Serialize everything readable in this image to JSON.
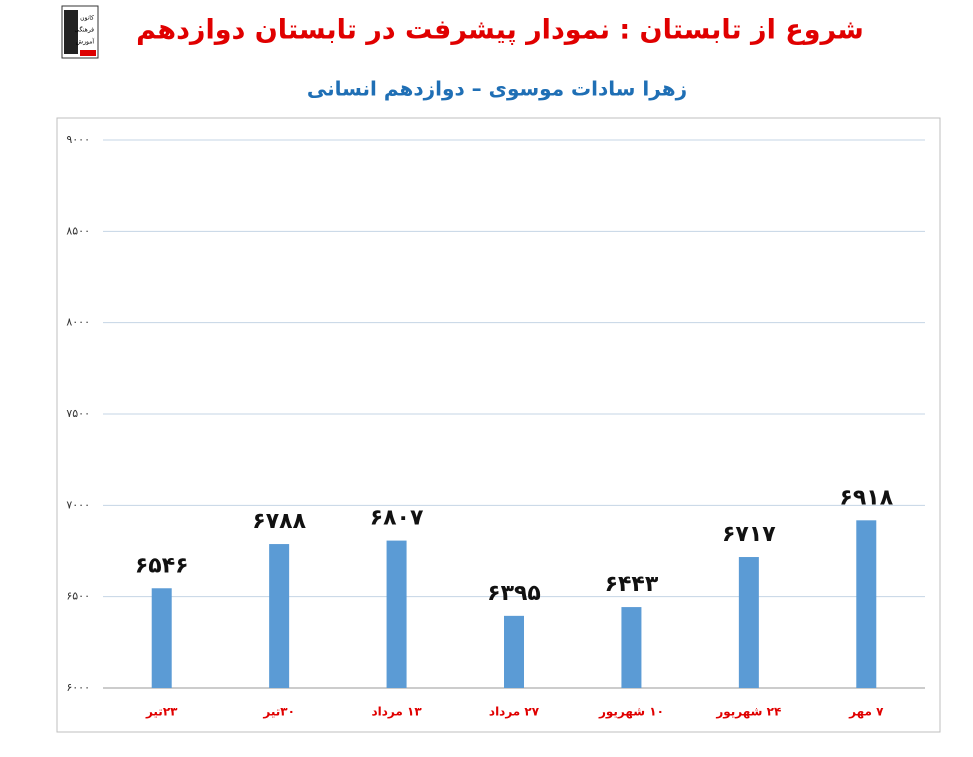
{
  "logo": {
    "lines": [
      "کانون",
      "فرهنگی",
      "آموزش"
    ]
  },
  "chart_data": {
    "type": "bar",
    "title": "شروع از تابستان : نمودار پیشرفت در تابستان دوازدهم",
    "subtitle": "زهرا سادات موسوی – دوازدهم انسانی",
    "categories": [
      "۲۳تیر",
      "۳۰تیر",
      "۱۳ مرداد",
      "۲۷ مرداد",
      "۱۰ شهریور",
      "۲۴ شهریور",
      "۷ مهر"
    ],
    "values": [
      6546,
      6788,
      6807,
      6395,
      6443,
      6717,
      6918
    ],
    "value_labels": [
      "۶۵۴۶",
      "۶۷۸۸",
      "۶۸۰۷",
      "۶۳۹۵",
      "۶۴۴۳",
      "۶۷۱۷",
      "۶۹۱۸"
    ],
    "color": "#5b9bd5",
    "ylim": [
      6000,
      9000
    ],
    "yticks": [
      {
        "value": 6000,
        "label": "۶۰۰۰"
      },
      {
        "value": 6500,
        "label": "۶۵۰۰"
      },
      {
        "value": 7000,
        "label": "۷۰۰۰"
      },
      {
        "value": 7500,
        "label": "۷۵۰۰"
      },
      {
        "value": 8000,
        "label": "۸۰۰۰"
      },
      {
        "value": 8500,
        "label": "۸۵۰۰"
      },
      {
        "value": 9000,
        "label": "۹۰۰۰"
      }
    ],
    "grid": true
  }
}
